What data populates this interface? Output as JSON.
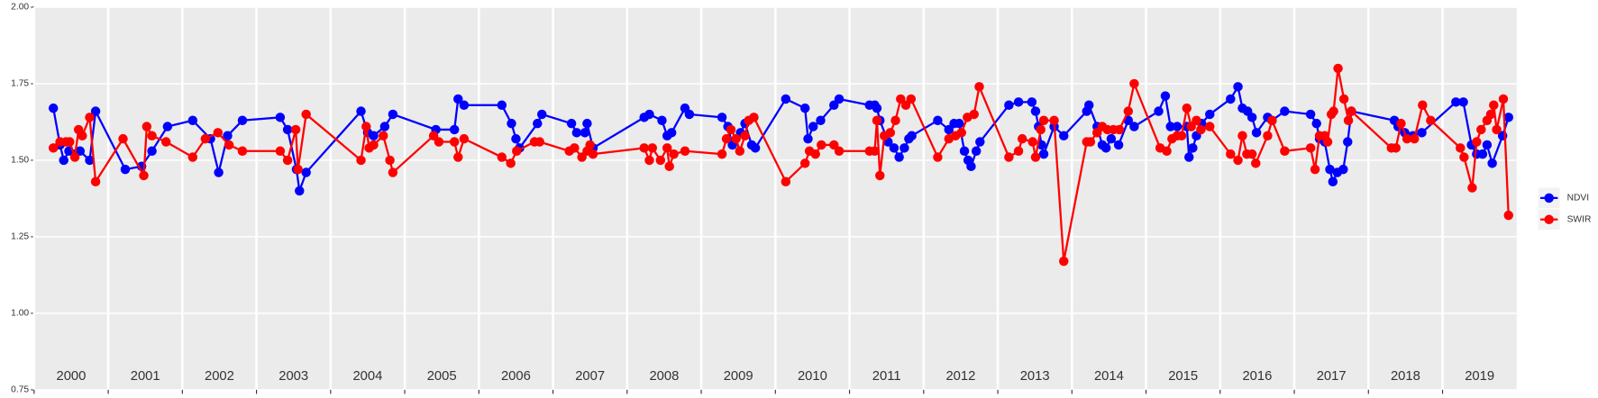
{
  "chart_data": {
    "type": "line",
    "xlim": [
      2000,
      2020
    ],
    "xticks": [
      2000,
      2001,
      2002,
      2003,
      2004,
      2005,
      2006,
      2007,
      2008,
      2009,
      2010,
      2011,
      2012,
      2013,
      2014,
      2015,
      2016,
      2017,
      2018,
      2019
    ],
    "ylim": [
      0.75,
      2.0
    ],
    "yticks": [
      {
        "value": 0.75,
        "label": "0.75"
      },
      {
        "value": 1.0,
        "label": "1.00"
      },
      {
        "value": 1.25,
        "label": "1.25"
      },
      {
        "value": 1.5,
        "label": "1.50"
      },
      {
        "value": 1.75,
        "label": "1.75"
      },
      {
        "value": 2.0,
        "label": "2.00"
      }
    ],
    "grid": true,
    "legend": "right",
    "series": [
      {
        "name": "NDVI",
        "color": "#0000ff",
        "x": [
          2000.26,
          2000.35,
          2000.4,
          2000.47,
          2000.55,
          2000.62,
          2000.75,
          2000.83,
          2001.23,
          2001.45,
          2001.59,
          2001.8,
          2002.14,
          2002.38,
          2002.49,
          2002.61,
          2002.81,
          2003.32,
          2003.42,
          2003.54,
          2003.58,
          2003.67,
          2004.41,
          2004.5,
          2004.58,
          2004.73,
          2004.84,
          2005.42,
          2005.67,
          2005.72,
          2005.8,
          2006.31,
          2006.44,
          2006.5,
          2006.55,
          2006.79,
          2006.85,
          2007.25,
          2007.32,
          2007.43,
          2007.46,
          2007.54,
          2008.23,
          2008.3,
          2008.47,
          2008.54,
          2008.6,
          2008.78,
          2008.84,
          2009.28,
          2009.36,
          2009.42,
          2009.53,
          2009.59,
          2009.68,
          2009.73,
          2010.14,
          2010.4,
          2010.44,
          2010.51,
          2010.61,
          2010.79,
          2010.86,
          2011.27,
          2011.34,
          2011.37,
          2011.41,
          2011.52,
          2011.6,
          2011.67,
          2011.74,
          2011.8,
          2011.84,
          2012.19,
          2012.34,
          2012.41,
          2012.48,
          2012.55,
          2012.6,
          2012.64,
          2012.71,
          2012.76,
          2013.15,
          2013.28,
          2013.46,
          2013.51,
          2013.55,
          2013.59,
          2013.62,
          2013.76,
          2013.89,
          2014.2,
          2014.23,
          2014.34,
          2014.41,
          2014.46,
          2014.53,
          2014.63,
          2014.76,
          2014.84,
          2015.17,
          2015.26,
          2015.33,
          2015.42,
          2015.55,
          2015.58,
          2015.63,
          2015.68,
          2015.75,
          2015.86,
          2016.14,
          2016.24,
          2016.3,
          2016.37,
          2016.43,
          2016.49,
          2016.64,
          2016.7,
          2016.87,
          2017.22,
          2017.3,
          2017.34,
          2017.41,
          2017.48,
          2017.52,
          2017.58,
          2017.66,
          2017.72,
          2017.77,
          2018.35,
          2018.4,
          2018.49,
          2018.6,
          2018.72,
          2019.18,
          2019.28,
          2019.39,
          2019.46,
          2019.54,
          2019.6,
          2019.67,
          2019.81,
          2019.89
        ],
        "values": [
          1.67,
          1.55,
          1.5,
          1.53,
          1.52,
          1.53,
          1.5,
          1.66,
          1.47,
          1.48,
          1.53,
          1.61,
          1.63,
          1.57,
          1.46,
          1.58,
          1.63,
          1.64,
          1.6,
          1.47,
          1.4,
          1.46,
          1.66,
          1.59,
          1.58,
          1.61,
          1.65,
          1.6,
          1.6,
          1.7,
          1.68,
          1.68,
          1.62,
          1.57,
          1.54,
          1.62,
          1.65,
          1.62,
          1.59,
          1.59,
          1.62,
          1.54,
          1.64,
          1.65,
          1.63,
          1.58,
          1.59,
          1.67,
          1.65,
          1.64,
          1.61,
          1.55,
          1.59,
          1.62,
          1.55,
          1.54,
          1.7,
          1.67,
          1.57,
          1.61,
          1.63,
          1.68,
          1.7,
          1.68,
          1.68,
          1.67,
          1.63,
          1.56,
          1.54,
          1.51,
          1.54,
          1.57,
          1.58,
          1.63,
          1.6,
          1.62,
          1.62,
          1.53,
          1.5,
          1.48,
          1.53,
          1.56,
          1.68,
          1.69,
          1.69,
          1.66,
          1.61,
          1.55,
          1.52,
          1.61,
          1.58,
          1.66,
          1.68,
          1.61,
          1.55,
          1.54,
          1.57,
          1.55,
          1.63,
          1.61,
          1.66,
          1.71,
          1.61,
          1.61,
          1.61,
          1.51,
          1.54,
          1.58,
          1.62,
          1.65,
          1.7,
          1.74,
          1.67,
          1.66,
          1.64,
          1.59,
          1.64,
          1.63,
          1.66,
          1.65,
          1.62,
          1.57,
          1.56,
          1.47,
          1.43,
          1.46,
          1.47,
          1.56,
          1.66,
          1.63,
          1.61,
          1.59,
          1.58,
          1.59,
          1.69,
          1.69,
          1.55,
          1.52,
          1.52,
          1.55,
          1.49,
          1.58,
          1.64
        ]
      },
      {
        "name": "SWIR",
        "color": "#ff0000",
        "x": [
          2000.26,
          2000.35,
          2000.43,
          2000.48,
          2000.55,
          2000.6,
          2000.65,
          2000.75,
          2000.83,
          2001.2,
          2001.48,
          2001.52,
          2001.59,
          2001.78,
          2002.14,
          2002.31,
          2002.48,
          2002.63,
          2002.81,
          2003.32,
          2003.42,
          2003.53,
          2003.56,
          2003.67,
          2004.41,
          2004.48,
          2004.52,
          2004.58,
          2004.71,
          2004.8,
          2004.84,
          2005.39,
          2005.46,
          2005.67,
          2005.72,
          2005.8,
          2006.31,
          2006.43,
          2006.51,
          2006.75,
          2006.82,
          2007.22,
          2007.29,
          2007.39,
          2007.46,
          2007.5,
          2007.54,
          2008.23,
          2008.3,
          2008.34,
          2008.45,
          2008.54,
          2008.57,
          2008.63,
          2008.78,
          2009.28,
          2009.34,
          2009.4,
          2009.47,
          2009.52,
          2009.59,
          2009.64,
          2009.71,
          2010.14,
          2010.4,
          2010.46,
          2010.54,
          2010.62,
          2010.79,
          2010.86,
          2011.27,
          2011.34,
          2011.37,
          2011.41,
          2011.47,
          2011.55,
          2011.62,
          2011.69,
          2011.76,
          2011.83,
          2012.19,
          2012.34,
          2012.43,
          2012.51,
          2012.59,
          2012.68,
          2012.75,
          2013.15,
          2013.28,
          2013.33,
          2013.47,
          2013.51,
          2013.58,
          2013.62,
          2013.76,
          2013.89,
          2014.2,
          2014.25,
          2014.34,
          2014.41,
          2014.48,
          2014.56,
          2014.64,
          2014.76,
          2014.84,
          2015.19,
          2015.28,
          2015.35,
          2015.42,
          2015.48,
          2015.55,
          2015.61,
          2015.68,
          2015.74,
          2015.86,
          2016.14,
          2016.24,
          2016.3,
          2016.36,
          2016.43,
          2016.48,
          2016.64,
          2016.7,
          2016.87,
          2017.22,
          2017.28,
          2017.34,
          2017.41,
          2017.45,
          2017.5,
          2017.53,
          2017.59,
          2017.67,
          2017.73,
          2017.77,
          2018.31,
          2018.37,
          2018.44,
          2018.52,
          2018.62,
          2018.73,
          2018.84,
          2019.24,
          2019.29,
          2019.4,
          2019.46,
          2019.52,
          2019.6,
          2019.65,
          2019.69,
          2019.73,
          2019.82,
          2019.89
        ],
        "values": [
          1.54,
          1.56,
          1.56,
          1.56,
          1.51,
          1.6,
          1.58,
          1.64,
          1.43,
          1.57,
          1.45,
          1.61,
          1.58,
          1.56,
          1.51,
          1.57,
          1.59,
          1.55,
          1.53,
          1.53,
          1.5,
          1.6,
          1.47,
          1.65,
          1.5,
          1.61,
          1.54,
          1.55,
          1.58,
          1.5,
          1.46,
          1.58,
          1.56,
          1.56,
          1.51,
          1.57,
          1.51,
          1.49,
          1.53,
          1.56,
          1.56,
          1.53,
          1.54,
          1.51,
          1.53,
          1.55,
          1.52,
          1.54,
          1.5,
          1.54,
          1.5,
          1.54,
          1.48,
          1.52,
          1.53,
          1.52,
          1.57,
          1.6,
          1.57,
          1.53,
          1.58,
          1.63,
          1.64,
          1.43,
          1.49,
          1.53,
          1.52,
          1.55,
          1.55,
          1.53,
          1.53,
          1.53,
          1.63,
          1.45,
          1.58,
          1.59,
          1.63,
          1.7,
          1.68,
          1.7,
          1.51,
          1.57,
          1.58,
          1.59,
          1.64,
          1.65,
          1.74,
          1.51,
          1.53,
          1.57,
          1.56,
          1.51,
          1.6,
          1.63,
          1.63,
          1.17,
          1.56,
          1.56,
          1.59,
          1.61,
          1.6,
          1.6,
          1.6,
          1.66,
          1.75,
          1.54,
          1.53,
          1.57,
          1.58,
          1.58,
          1.67,
          1.61,
          1.63,
          1.6,
          1.61,
          1.52,
          1.5,
          1.58,
          1.52,
          1.52,
          1.49,
          1.58,
          1.63,
          1.53,
          1.54,
          1.47,
          1.58,
          1.58,
          1.56,
          1.65,
          1.66,
          1.8,
          1.7,
          1.63,
          1.66,
          1.54,
          1.54,
          1.62,
          1.57,
          1.57,
          1.68,
          1.63,
          1.54,
          1.51,
          1.41,
          1.56,
          1.6,
          1.63,
          1.65,
          1.68,
          1.6,
          1.7,
          1.32
        ]
      }
    ]
  }
}
